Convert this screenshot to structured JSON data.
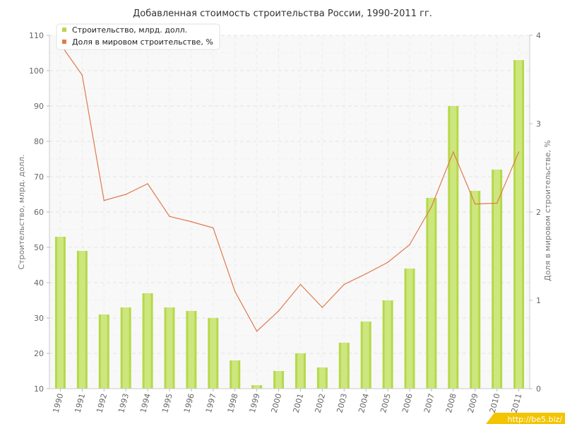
{
  "chart_data": {
    "type": "bar",
    "title": "Добавленная стоимость строительства России, 1990-2011 гг.",
    "categories": [
      "1990",
      "1991",
      "1992",
      "1993",
      "1994",
      "1995",
      "1996",
      "1997",
      "1998",
      "1999",
      "2000",
      "2001",
      "2002",
      "2003",
      "2004",
      "2005",
      "2006",
      "2007",
      "2008",
      "2009",
      "2010",
      "2011"
    ],
    "series": [
      {
        "name": "Строительство, млрд. долл.",
        "type": "bar",
        "axis": "left",
        "color": "#b5d94a",
        "values": [
          53,
          49,
          31,
          33,
          37,
          33,
          32,
          30,
          18,
          11,
          15,
          20,
          16,
          23,
          29,
          35,
          44,
          64,
          90,
          66,
          72,
          103
        ]
      },
      {
        "name": "Доля в мировом строительстве, %",
        "type": "line",
        "axis": "right",
        "color": "#e07a4a",
        "values": [
          3.9,
          3.55,
          2.13,
          2.2,
          2.32,
          1.95,
          1.89,
          1.82,
          1.1,
          0.65,
          0.88,
          1.18,
          0.92,
          1.18,
          1.3,
          1.43,
          1.63,
          2.06,
          2.68,
          2.09,
          2.1,
          2.68
        ]
      }
    ],
    "ylabel": "Строительство, млрд. долл.",
    "y2label": "Доля в мировом строительстве, %",
    "ylim": [
      10,
      110
    ],
    "yticks": [
      10,
      20,
      30,
      40,
      50,
      60,
      70,
      80,
      90,
      100,
      110
    ],
    "y2lim": [
      0,
      4
    ],
    "y2ticks": [
      0,
      1,
      2,
      3,
      4
    ],
    "grid": true,
    "legend_position": "top-left"
  },
  "watermark": "http://be5.biz/"
}
